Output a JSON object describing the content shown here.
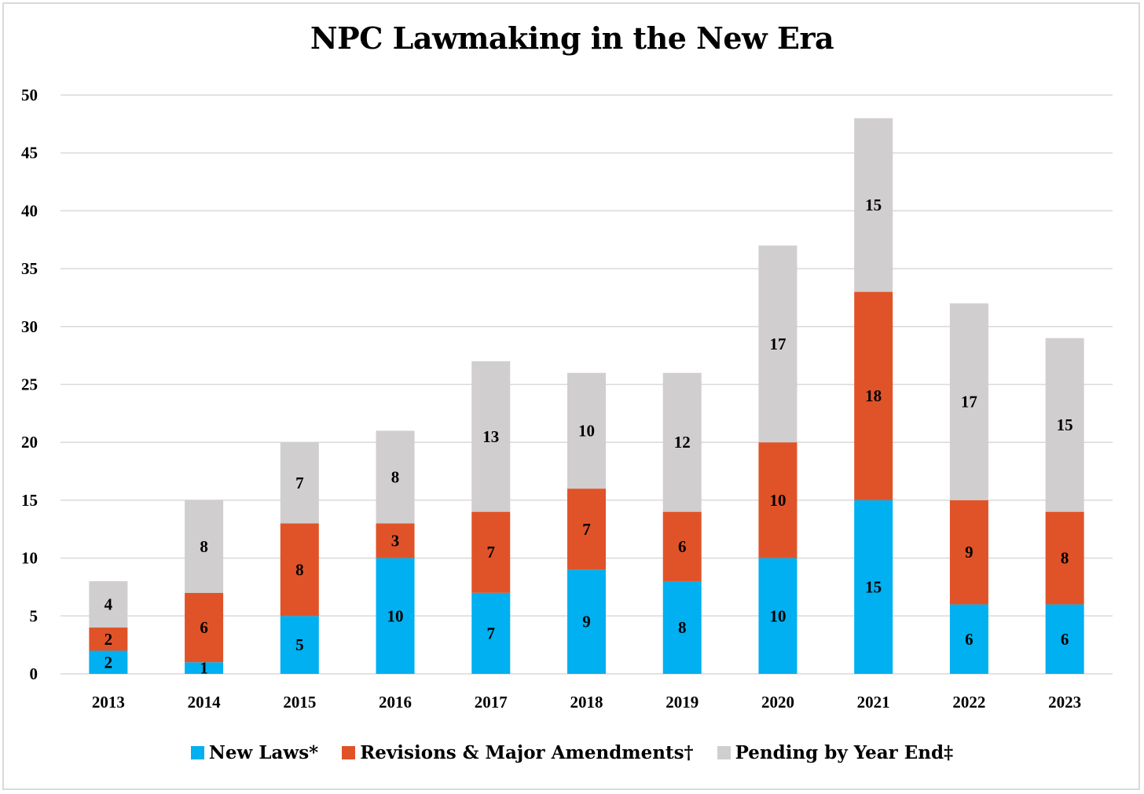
{
  "chart_data": {
    "type": "bar",
    "stacked": true,
    "title": "NPC Lawmaking in the New Era",
    "xlabel": "",
    "ylabel": "",
    "ylim": [
      0,
      50
    ],
    "yticks": [
      0,
      5,
      10,
      15,
      20,
      25,
      30,
      35,
      40,
      45,
      50
    ],
    "grid": true,
    "legend_position": "bottom",
    "categories": [
      "2013",
      "2014",
      "2015",
      "2016",
      "2017",
      "2018",
      "2019",
      "2020",
      "2021",
      "2022",
      "2023"
    ],
    "series": [
      {
        "name": "New Laws*",
        "color": "#00b0f0",
        "values": [
          2,
          1,
          5,
          10,
          7,
          9,
          8,
          10,
          15,
          6,
          6
        ]
      },
      {
        "name": "Revisions & Major Amendments†",
        "color": "#e05328",
        "values": [
          2,
          6,
          8,
          3,
          7,
          7,
          6,
          10,
          18,
          9,
          8
        ]
      },
      {
        "name": "Pending by Year End‡",
        "color": "#d0cece",
        "values": [
          4,
          8,
          7,
          8,
          13,
          10,
          12,
          17,
          15,
          17,
          15
        ]
      }
    ]
  }
}
